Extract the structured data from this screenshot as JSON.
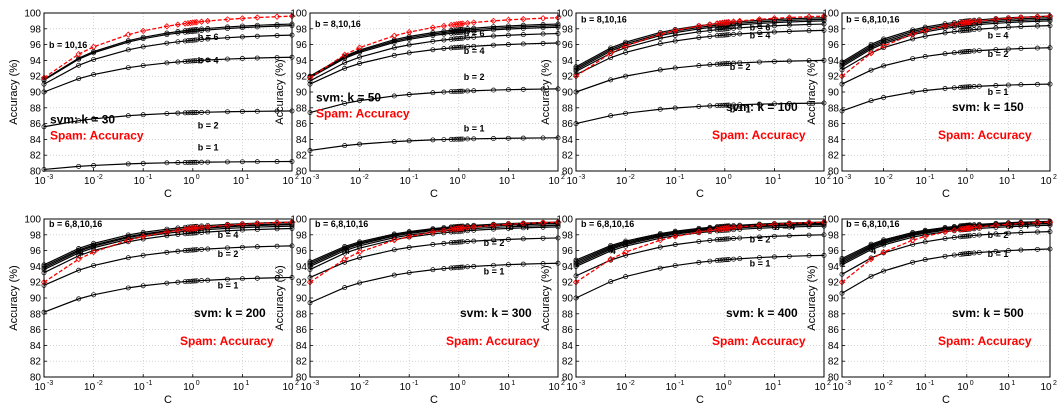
{
  "chart_data": {
    "type": "line",
    "layout": "2x4 grid",
    "x_scale": "log",
    "xlabel": "C",
    "ylabel": "Accuracy (%)",
    "xlim": [
      0.001,
      100
    ],
    "ylim": [
      80,
      100
    ],
    "x_ticks": [
      "10-3",
      "10-2",
      "10-1",
      "100",
      "101",
      "102"
    ],
    "y_ticks": [
      80,
      82,
      84,
      86,
      88,
      90,
      92,
      94,
      96,
      98,
      100
    ],
    "grid": true,
    "x_points": [
      0.001,
      0.005,
      0.01,
      0.05,
      0.1,
      0.3,
      0.5,
      0.7,
      0.8,
      0.9,
      1,
      1.1,
      1.2,
      1.5,
      2,
      5,
      10,
      20,
      50,
      100
    ],
    "colors": {
      "svm": "#000000",
      "spam": "#ff0000"
    },
    "series_label_prefix": "svm: k = ",
    "spam_label": "Spam: Accuracy",
    "panels": [
      {
        "k": 30,
        "svm_label": "svm: k = 30",
        "spam_label": "Spam: Accuracy",
        "label_pos": "mid-left",
        "labels": [
          {
            "text": "b = 10,16",
            "lx": -2.9,
            "ly": 95.6
          },
          {
            "text": "b = 6",
            "lx": 0.1,
            "ly": 96.6
          },
          {
            "text": "b = 4",
            "lx": 0.1,
            "ly": 93.6
          },
          {
            "text": "b = 2",
            "lx": 0.1,
            "ly": 85.4
          },
          {
            "text": "b = 1",
            "lx": 0.1,
            "ly": 82.6
          }
        ],
        "series": [
          {
            "name": "b = 16",
            "start": 91.6,
            "end": 98.6
          },
          {
            "name": "b = 10",
            "start": 91.5,
            "end": 98.4
          },
          {
            "name": "b = 6",
            "start": 91.0,
            "end": 97.2
          },
          {
            "name": "b = 4",
            "start": 90.0,
            "end": 94.4
          },
          {
            "name": "b = 2",
            "start": 85.6,
            "end": 87.6
          },
          {
            "name": "b = 1",
            "start": 80.2,
            "end": 81.2
          }
        ],
        "spam": {
          "start": 91.8,
          "end": 99.6
        }
      },
      {
        "k": 50,
        "svm_label": "svm: k = 50",
        "spam_label": "Spam: Accuracy",
        "label_pos": "mid-left",
        "labels": [
          {
            "text": "b = 8,10,16",
            "lx": -2.9,
            "ly": 98.2
          },
          {
            "text": "b = 6",
            "lx": 0.1,
            "ly": 97.0
          },
          {
            "text": "b = 4",
            "lx": 0.1,
            "ly": 94.8
          },
          {
            "text": "b = 2",
            "lx": 0.1,
            "ly": 91.5
          },
          {
            "text": "b = 1",
            "lx": 0.1,
            "ly": 85.0
          }
        ],
        "series": [
          {
            "name": "b = 16",
            "start": 92.0,
            "end": 98.6
          },
          {
            "name": "b = 10",
            "start": 91.9,
            "end": 98.4
          },
          {
            "name": "b = 8",
            "start": 91.8,
            "end": 98.2
          },
          {
            "name": "b = 6",
            "start": 91.4,
            "end": 97.4
          },
          {
            "name": "b = 4",
            "start": 91.0,
            "end": 96.2
          },
          {
            "name": "b = 2",
            "start": 87.4,
            "end": 90.4
          },
          {
            "name": "b = 1",
            "start": 82.6,
            "end": 84.2
          }
        ],
        "spam": {
          "start": 91.8,
          "end": 99.4
        }
      },
      {
        "k": 100,
        "svm_label": "svm: k = 100",
        "spam_label": "Spam: Accuracy",
        "label_pos": "lower-right",
        "labels": [
          {
            "text": "b = 8,10,16",
            "lx": -2.9,
            "ly": 98.8
          },
          {
            "text": "b = 6",
            "lx": 0.5,
            "ly": 97.8
          },
          {
            "text": "b = 4",
            "lx": 0.5,
            "ly": 96.8
          },
          {
            "text": "b = 2",
            "lx": 0.1,
            "ly": 92.8
          },
          {
            "text": "b = 1",
            "lx": 0.1,
            "ly": 87.4
          }
        ],
        "series": [
          {
            "name": "b = 16",
            "start": 93.2,
            "end": 99.4
          },
          {
            "name": "b = 10",
            "start": 93.0,
            "end": 99.2
          },
          {
            "name": "b = 8",
            "start": 92.8,
            "end": 99.0
          },
          {
            "name": "b = 6",
            "start": 92.6,
            "end": 98.6
          },
          {
            "name": "b = 4",
            "start": 92.2,
            "end": 97.8
          },
          {
            "name": "b = 2",
            "start": 90.0,
            "end": 94.0
          },
          {
            "name": "b = 1",
            "start": 86.0,
            "end": 88.6
          }
        ],
        "spam": {
          "start": 92.0,
          "end": 99.6
        }
      },
      {
        "k": 150,
        "svm_label": "svm: k = 150",
        "spam_label": "Spam: Accuracy",
        "label_pos": "lower-right",
        "labels": [
          {
            "text": "b = 6,8,10,16",
            "lx": -2.9,
            "ly": 98.8
          },
          {
            "text": "b = 4",
            "lx": 0.5,
            "ly": 96.8
          },
          {
            "text": "b = 2",
            "lx": 0.5,
            "ly": 94.4
          },
          {
            "text": "b = 1",
            "lx": 0.5,
            "ly": 89.6
          }
        ],
        "series": [
          {
            "name": "b = 16",
            "start": 93.8,
            "end": 99.6
          },
          {
            "name": "b = 10",
            "start": 93.6,
            "end": 99.4
          },
          {
            "name": "b = 8",
            "start": 93.4,
            "end": 99.2
          },
          {
            "name": "b = 6",
            "start": 93.2,
            "end": 99.0
          },
          {
            "name": "b = 4",
            "start": 92.8,
            "end": 98.4
          },
          {
            "name": "b = 2",
            "start": 91.0,
            "end": 95.6
          },
          {
            "name": "b = 1",
            "start": 87.6,
            "end": 91.0
          }
        ],
        "spam": {
          "start": 92.0,
          "end": 99.6
        }
      },
      {
        "k": 200,
        "svm_label": "svm: k = 200",
        "spam_label": "Spam: Accuracy",
        "label_pos": "lower-right",
        "labels": [
          {
            "text": "b = 6,8,10,16",
            "lx": -2.9,
            "ly": 99.0
          },
          {
            "text": "b = 4",
            "lx": 0.5,
            "ly": 97.6
          },
          {
            "text": "b = 2",
            "lx": 0.5,
            "ly": 95.2
          },
          {
            "text": "b = 1",
            "lx": 0.5,
            "ly": 91.2
          },
          {
            "text": "4",
            "lx": -2.3,
            "ly": 95.4
          }
        ],
        "series": [
          {
            "name": "b = 16",
            "start": 94.2,
            "end": 99.6
          },
          {
            "name": "b = 10",
            "start": 94.0,
            "end": 99.4
          },
          {
            "name": "b = 8",
            "start": 93.8,
            "end": 99.3
          },
          {
            "name": "b = 6",
            "start": 93.6,
            "end": 99.1
          },
          {
            "name": "b = 4",
            "start": 93.2,
            "end": 98.8
          },
          {
            "name": "b = 2",
            "start": 91.6,
            "end": 96.6
          },
          {
            "name": "b = 1",
            "start": 88.2,
            "end": 92.6
          }
        ],
        "spam": {
          "start": 92.0,
          "end": 99.6
        }
      },
      {
        "k": 300,
        "svm_label": "svm: k = 300",
        "spam_label": "Spam: Accuracy",
        "label_pos": "lower-right",
        "labels": [
          {
            "text": "b = 6,8,10,16",
            "lx": -2.9,
            "ly": 99.0
          },
          {
            "text": "b = 4",
            "lx": 1.0,
            "ly": 98.6
          },
          {
            "text": "b = 2",
            "lx": 0.5,
            "ly": 96.6
          },
          {
            "text": "b = 1",
            "lx": 0.5,
            "ly": 93.0
          },
          {
            "text": "4",
            "lx": -2.3,
            "ly": 95.6
          }
        ],
        "series": [
          {
            "name": "b = 16",
            "start": 94.6,
            "end": 99.6
          },
          {
            "name": "b = 10",
            "start": 94.4,
            "end": 99.5
          },
          {
            "name": "b = 8",
            "start": 94.2,
            "end": 99.4
          },
          {
            "name": "b = 6",
            "start": 94.0,
            "end": 99.2
          },
          {
            "name": "b = 4",
            "start": 93.6,
            "end": 99.0
          },
          {
            "name": "b = 2",
            "start": 92.6,
            "end": 97.6
          },
          {
            "name": "b = 1",
            "start": 89.4,
            "end": 94.4
          }
        ],
        "spam": {
          "start": 92.0,
          "end": 99.6
        }
      },
      {
        "k": 400,
        "svm_label": "svm: k = 400",
        "spam_label": "Spam: Accuracy",
        "label_pos": "lower-right",
        "labels": [
          {
            "text": "b = 6,8,10,16",
            "lx": -2.9,
            "ly": 99.0
          },
          {
            "text": "b = 4",
            "lx": 1.0,
            "ly": 98.6
          },
          {
            "text": "b = 2",
            "lx": 0.5,
            "ly": 97.0
          },
          {
            "text": "b = 1",
            "lx": 0.5,
            "ly": 94.0
          },
          {
            "text": "4",
            "lx": -2.3,
            "ly": 95.6
          }
        ],
        "series": [
          {
            "name": "b = 16",
            "start": 94.8,
            "end": 99.6
          },
          {
            "name": "b = 10",
            "start": 94.6,
            "end": 99.5
          },
          {
            "name": "b = 8",
            "start": 94.4,
            "end": 99.4
          },
          {
            "name": "b = 6",
            "start": 94.2,
            "end": 99.3
          },
          {
            "name": "b = 4",
            "start": 94.0,
            "end": 99.1
          },
          {
            "name": "b = 2",
            "start": 92.8,
            "end": 98.0
          },
          {
            "name": "b = 1",
            "start": 90.0,
            "end": 95.4
          }
        ],
        "spam": {
          "start": 92.0,
          "end": 99.6
        }
      },
      {
        "k": 500,
        "svm_label": "svm: k = 500",
        "spam_label": "Spam: Accuracy",
        "label_pos": "lower-right",
        "labels": [
          {
            "text": "b = 6,8,10,16",
            "lx": -2.9,
            "ly": 99.0
          },
          {
            "text": "b = 4",
            "lx": 1.0,
            "ly": 98.8
          },
          {
            "text": "b = 2",
            "lx": 0.5,
            "ly": 97.6
          },
          {
            "text": "b = 1",
            "lx": 0.5,
            "ly": 95.2
          },
          {
            "text": "4",
            "lx": -2.3,
            "ly": 95.6
          }
        ],
        "series": [
          {
            "name": "b = 16",
            "start": 95.0,
            "end": 99.7
          },
          {
            "name": "b = 10",
            "start": 94.8,
            "end": 99.6
          },
          {
            "name": "b = 8",
            "start": 94.6,
            "end": 99.5
          },
          {
            "name": "b = 6",
            "start": 94.4,
            "end": 99.4
          },
          {
            "name": "b = 4",
            "start": 94.2,
            "end": 99.2
          },
          {
            "name": "b = 2",
            "start": 93.0,
            "end": 98.4
          },
          {
            "name": "b = 1",
            "start": 90.6,
            "end": 96.2
          }
        ],
        "spam": {
          "start": 92.0,
          "end": 99.6
        }
      }
    ]
  }
}
